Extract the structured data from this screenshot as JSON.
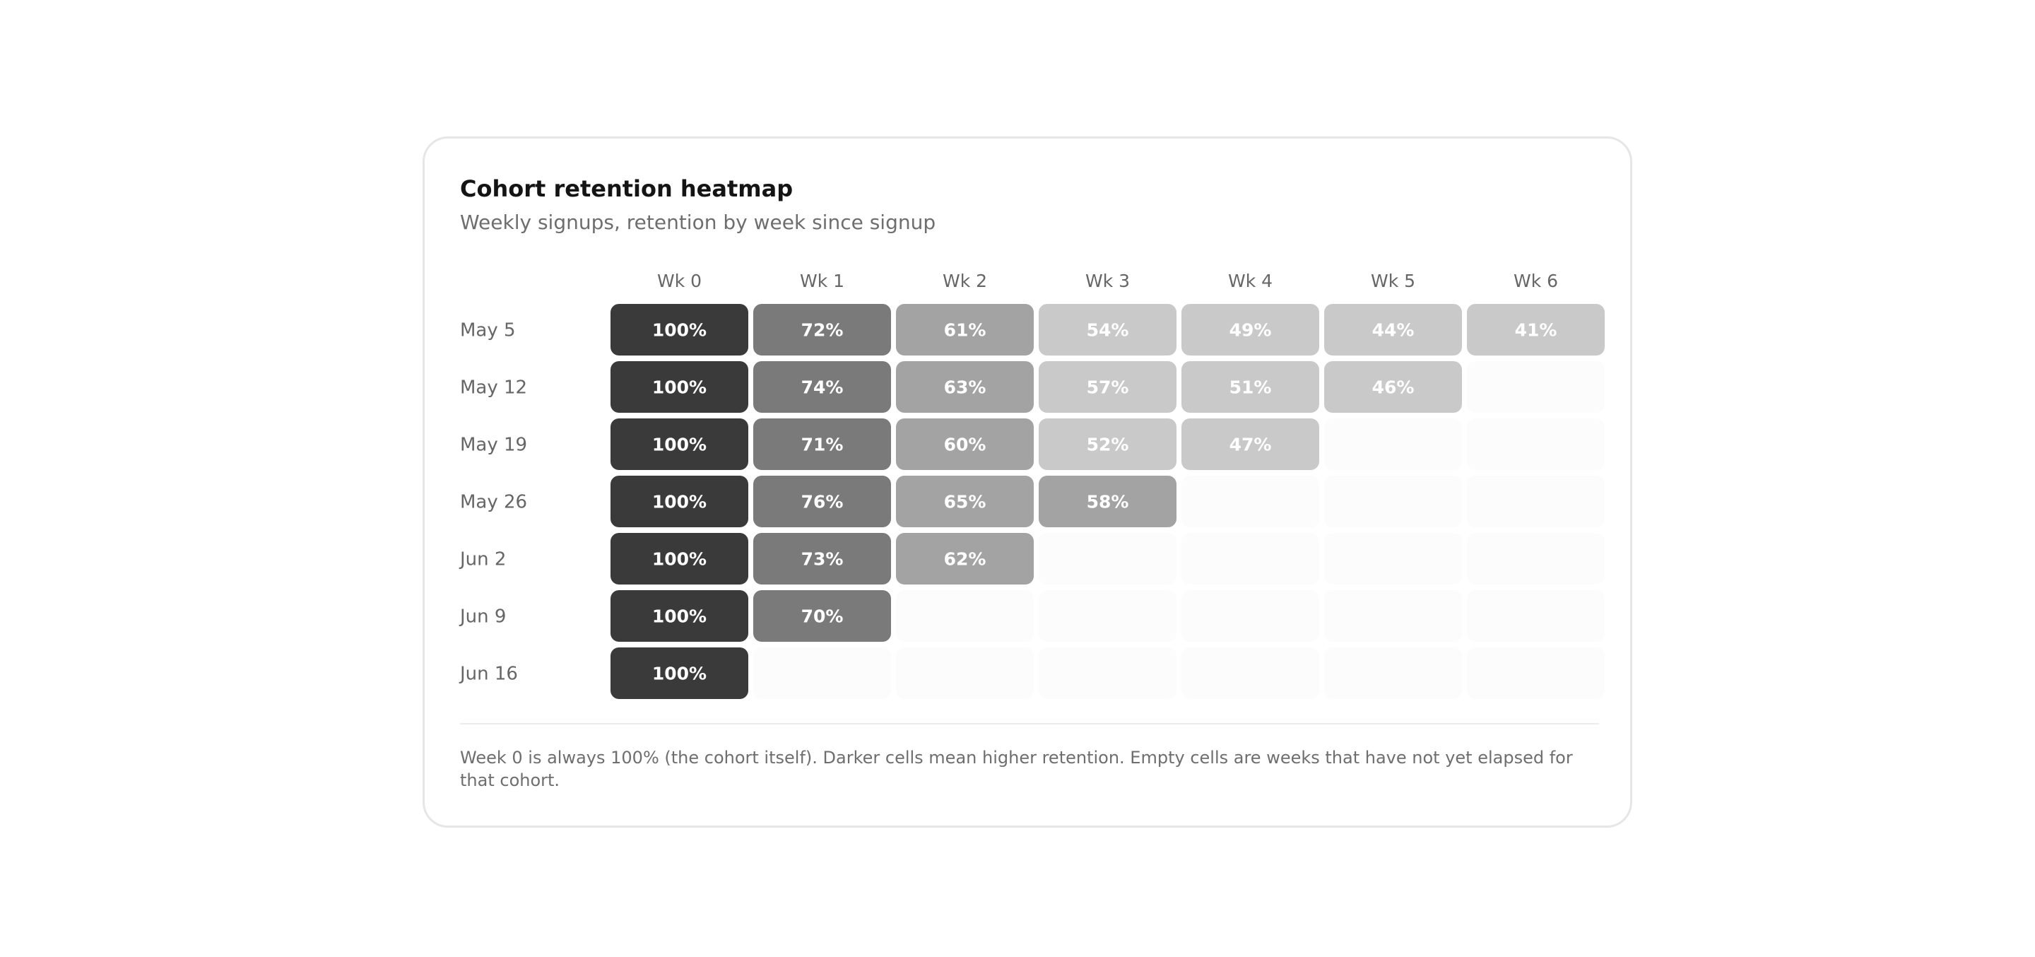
{
  "card": {
    "title": "Cohort retention heatmap",
    "subtitle": "Weekly signups, retention by week since signup",
    "footnote": "Week 0 is always 100% (the cohort itself). Darker cells mean higher retention. Empty cells are weeks that have not yet elapsed for that cohort."
  },
  "chart_data": {
    "type": "heatmap",
    "title": "Cohort retention heatmap",
    "subtitle": "Weekly signups, retention by week since signup",
    "columns": [
      "Wk 0",
      "Wk 1",
      "Wk 2",
      "Wk 3",
      "Wk 4",
      "Wk 5",
      "Wk 6"
    ],
    "rows": [
      "May 5",
      "May 12",
      "May 19",
      "May 26",
      "Jun 2",
      "Jun 9",
      "Jun 16"
    ],
    "values": [
      [
        100,
        72,
        61,
        54,
        49,
        44,
        41
      ],
      [
        100,
        74,
        63,
        57,
        51,
        46,
        null
      ],
      [
        100,
        71,
        60,
        52,
        47,
        null,
        null
      ],
      [
        100,
        76,
        65,
        58,
        null,
        null,
        null
      ],
      [
        100,
        73,
        62,
        null,
        null,
        null,
        null
      ],
      [
        100,
        70,
        null,
        null,
        null,
        null,
        null
      ],
      [
        100,
        null,
        null,
        null,
        null,
        null,
        null
      ]
    ],
    "value_format": "percent",
    "colors": {
      "high": "#3a3a3a",
      "upper_mid": "#7a7a7a",
      "mid": "#a3a3a3",
      "low": "#c9c9c9",
      "empty": "#fcfcfc",
      "cell_text": "#ffffff",
      "label_text": "#666666"
    }
  }
}
